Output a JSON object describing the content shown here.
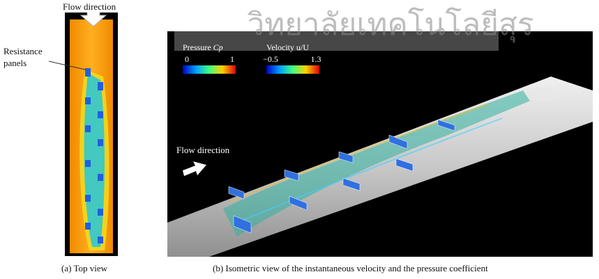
{
  "watermark": "วิทยาลัยเทคโนโลยีสุร",
  "panel_a": {
    "flow_label": "Flow direction",
    "annotation": [
      "Resistance",
      "panels"
    ],
    "caption": "(a) Top view"
  },
  "panel_b": {
    "flow_label": "Flow direction",
    "legends": [
      {
        "title": "Pressure",
        "symbol": "Cp",
        "min": "0",
        "max": "1"
      },
      {
        "title": "Velocity u/U",
        "symbol": "",
        "min": "−0.5",
        "max": "1.3"
      }
    ],
    "caption": "(b) Isometric view of the instantaneous velocity and the pressure coefficient"
  }
}
